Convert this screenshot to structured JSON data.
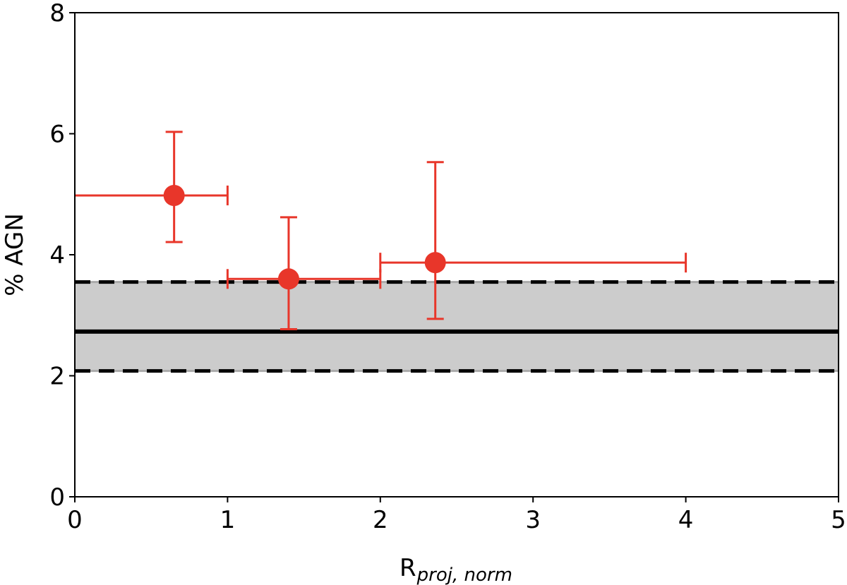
{
  "chart_data": {
    "type": "scatter",
    "xlabel_main": "R",
    "xlabel_sub": "proj, norm",
    "ylabel": "% AGN",
    "xlim": [
      0,
      5
    ],
    "ylim": [
      0,
      8
    ],
    "x_ticks": [
      "0",
      "1",
      "2",
      "3",
      "4",
      "5"
    ],
    "y_ticks": [
      "0",
      "2",
      "4",
      "6",
      "8"
    ],
    "points": [
      {
        "x": 0.65,
        "y": 4.98,
        "x_err_low": 0.65,
        "x_err_high": 0.35,
        "y_err_low": 0.77,
        "y_err_high": 1.05
      },
      {
        "x": 1.4,
        "y": 3.6,
        "x_err_low": 0.4,
        "x_err_high": 0.6,
        "y_err_low": 0.83,
        "y_err_high": 1.02
      },
      {
        "x": 2.36,
        "y": 3.87,
        "x_err_low": 0.36,
        "x_err_high": 1.64,
        "y_err_low": 0.93,
        "y_err_high": 1.66
      }
    ],
    "reference_line": 2.73,
    "reference_band": [
      2.08,
      3.55
    ],
    "grid": false,
    "colors": {
      "points": "#e8362a",
      "band": "#cccccc",
      "band_edge": "#aaaaaa",
      "reference": "#000000"
    }
  }
}
